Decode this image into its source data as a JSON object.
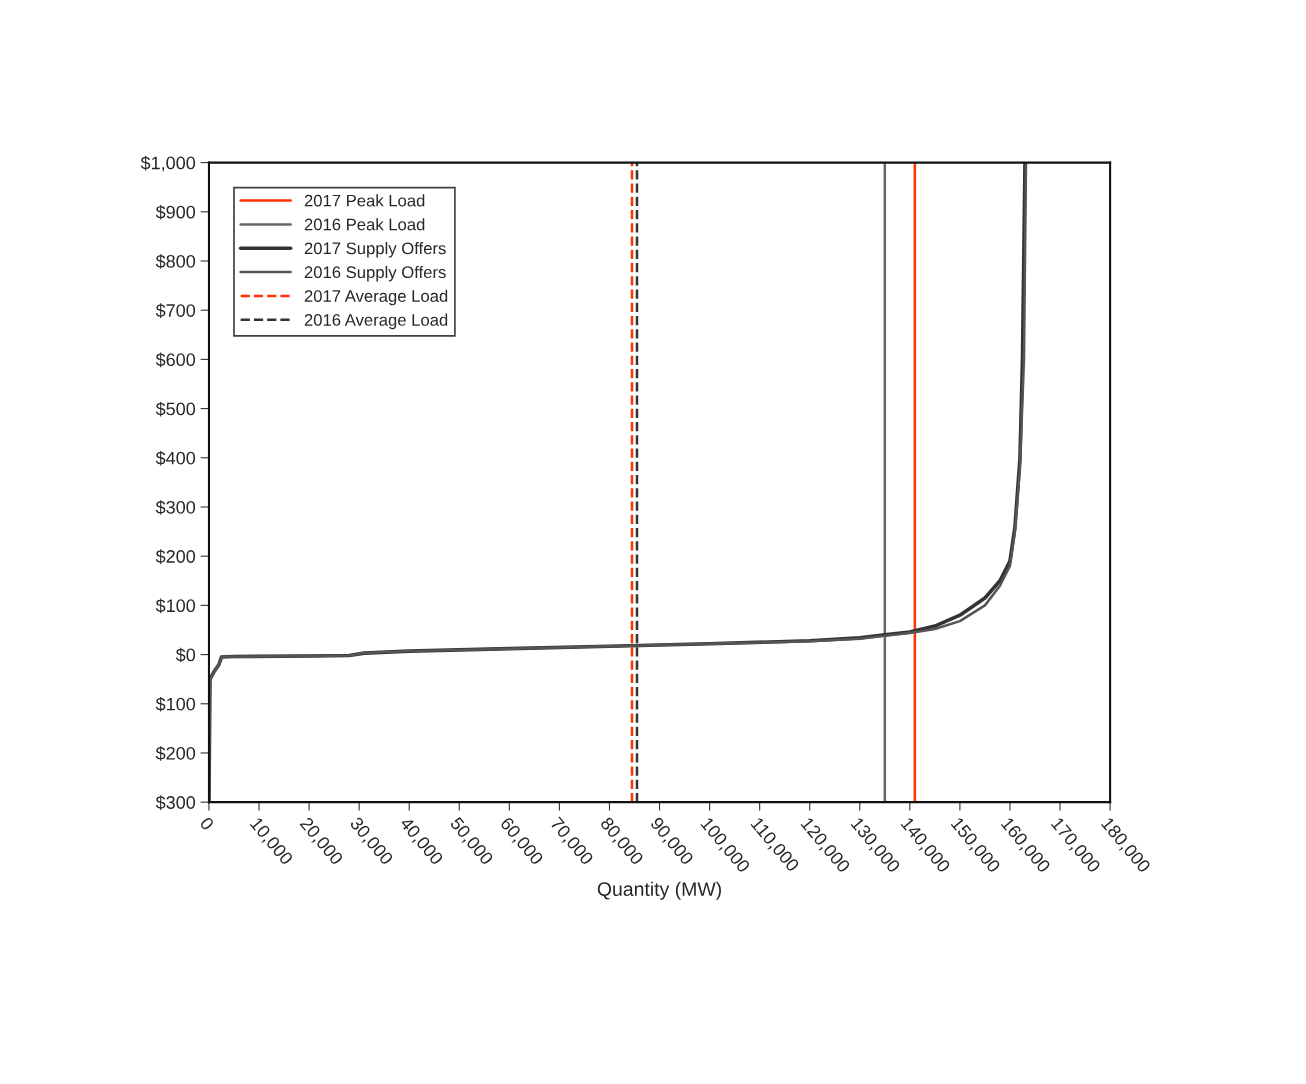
{
  "chart_data": {
    "type": "line",
    "xlabel": "Quantity (MW)",
    "xlim": [
      0,
      180000
    ],
    "xticks": [
      0,
      {
        "value": 10000,
        "label": "10,000"
      },
      {
        "value": 20000,
        "label": "20,000"
      },
      {
        "value": 30000,
        "label": "30,000"
      },
      {
        "value": 40000,
        "label": "40,000"
      },
      {
        "value": 50000,
        "label": "50,000"
      },
      {
        "value": 60000,
        "label": "60,000"
      },
      {
        "value": 70000,
        "label": "70,000"
      },
      {
        "value": 80000,
        "label": "80,000"
      },
      {
        "value": 90000,
        "label": "90,000"
      },
      {
        "value": 100000,
        "label": "100,000"
      },
      {
        "value": 110000,
        "label": "110,000"
      },
      {
        "value": 120000,
        "label": "120,000"
      },
      {
        "value": 130000,
        "label": "130,000"
      },
      {
        "value": 140000,
        "label": "140,000"
      },
      {
        "value": 150000,
        "label": "150,000"
      },
      {
        "value": 160000,
        "label": "160,000"
      },
      {
        "value": 170000,
        "label": "170,000"
      },
      {
        "value": 180000,
        "label": "180,000"
      }
    ],
    "ylim": [
      -300,
      1000
    ],
    "yticks": [
      {
        "value": -300,
        "label": "$300"
      },
      {
        "value": -200,
        "label": "$200"
      },
      {
        "value": -100,
        "label": "$100"
      },
      {
        "value": 0,
        "label": "$0"
      },
      {
        "value": 100,
        "label": "$100"
      },
      {
        "value": 200,
        "label": "$200"
      },
      {
        "value": 300,
        "label": "$300"
      },
      {
        "value": 400,
        "label": "$400"
      },
      {
        "value": 500,
        "label": "$500"
      },
      {
        "value": 600,
        "label": "$600"
      },
      {
        "value": 700,
        "label": "$700"
      },
      {
        "value": 800,
        "label": "$800"
      },
      {
        "value": 900,
        "label": "$900"
      },
      {
        "value": 1000,
        "label": "$1,000"
      }
    ],
    "grid": false,
    "legend": "top left",
    "marker": "none",
    "series": [
      {
        "name": "2017 Peak Load",
        "color": "#ff3300",
        "line_style": "solid",
        "x": [
          141000,
          141000
        ],
        "values": [
          -300,
          1000
        ]
      },
      {
        "name": "2016 Peak Load",
        "color": "#666666",
        "line_style": "solid",
        "x": [
          135000,
          135000
        ],
        "values": [
          -300,
          1000
        ]
      },
      {
        "name": "2017 Supply Offers",
        "color": "#333333",
        "line_style": "solid",
        "x": [
          0,
          200,
          1000,
          2000,
          2500,
          5000,
          20000,
          28000,
          31000,
          40000,
          60000,
          80000,
          100000,
          120000,
          130000,
          135000,
          140000,
          145000,
          150000,
          155000,
          158000,
          160000,
          161000,
          162000,
          162500,
          163000
        ],
        "values": [
          -300,
          -50,
          -35,
          -20,
          -5,
          -4,
          -3,
          -2,
          3,
          7,
          12,
          17,
          22,
          28,
          34,
          40,
          46,
          58,
          80,
          115,
          150,
          190,
          260,
          400,
          600,
          1000
        ]
      },
      {
        "name": "2016 Supply Offers",
        "color": "#555555",
        "line_style": "solid",
        "x": [
          0,
          200,
          1000,
          2000,
          2500,
          5000,
          20000,
          28000,
          31000,
          40000,
          60000,
          80000,
          100000,
          120000,
          130000,
          135000,
          140000,
          145000,
          150000,
          155000,
          158000,
          160000,
          161000,
          162000,
          162800,
          163200
        ],
        "values": [
          -300,
          -50,
          -35,
          -20,
          -5,
          -4,
          -3,
          -2,
          3,
          7,
          12,
          17,
          22,
          27,
          32,
          38,
          44,
          52,
          68,
          100,
          140,
          180,
          250,
          380,
          600,
          1000
        ]
      },
      {
        "name": "2017 Average Load",
        "color": "#ff3300",
        "line_style": "dashed",
        "x": [
          84500,
          84500
        ],
        "values": [
          -300,
          1000
        ]
      },
      {
        "name": "2016 Average Load",
        "color": "#333333",
        "line_style": "dashed",
        "x": [
          85500,
          85500
        ],
        "values": [
          -300,
          1000
        ]
      }
    ]
  }
}
